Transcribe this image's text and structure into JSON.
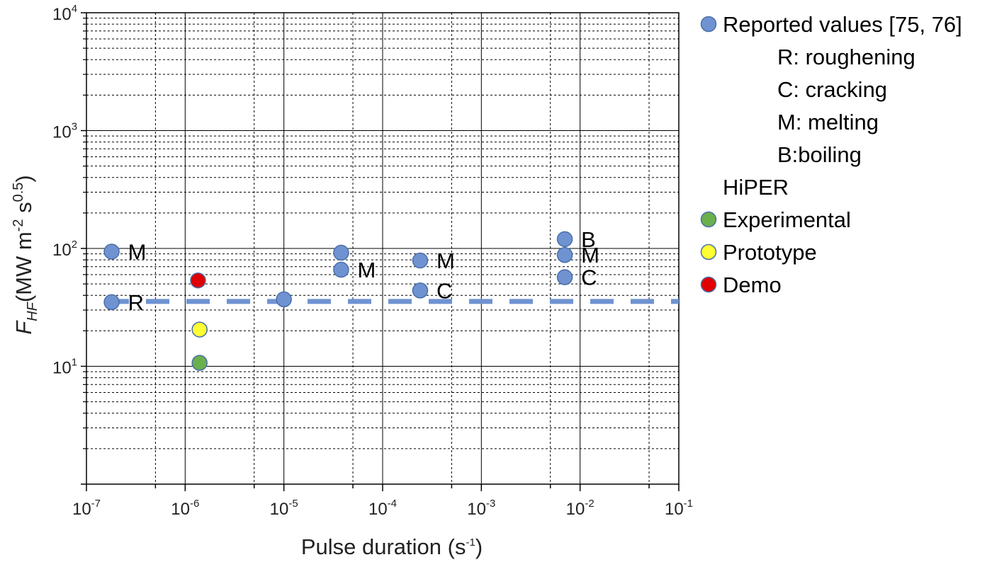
{
  "chart_data": {
    "type": "scatter",
    "x_scale": "log",
    "y_scale": "log",
    "xlim": [
      1e-07,
      0.1
    ],
    "ylim": [
      1,
      10000
    ],
    "grid": true,
    "legend_placement": "right",
    "xlabel": {
      "text": "Pulse duration (s",
      "sup": "-1",
      "close": ")"
    },
    "ylabel": {
      "main": "F",
      "sub": "HF",
      "text_a": "(MW m",
      "sup_a": "-2",
      "text_b": " s",
      "sup_b": "0.5",
      "text_c": ")"
    },
    "x_ticks": [
      {
        "base": "10",
        "exp": "-7"
      },
      {
        "base": "10",
        "exp": "-6"
      },
      {
        "base": "10",
        "exp": "-5"
      },
      {
        "base": "10",
        "exp": "-4"
      },
      {
        "base": "10",
        "exp": "-3"
      },
      {
        "base": "10",
        "exp": "-2"
      },
      {
        "base": "10",
        "exp": "-1"
      }
    ],
    "y_ticks": [
      {
        "base": "10",
        "exp": "1"
      },
      {
        "base": "10",
        "exp": "2"
      },
      {
        "base": "10",
        "exp": "3"
      },
      {
        "base": "10",
        "exp": "4"
      }
    ],
    "series": [
      {
        "name": "Reported values [75, 76]",
        "color": "#6f93d1",
        "points": [
          {
            "x": 1.8e-07,
            "y": 94,
            "label": "M"
          },
          {
            "x": 1.8e-07,
            "y": 35,
            "label": "R"
          },
          {
            "x": 1e-05,
            "y": 37,
            "label": ""
          },
          {
            "x": 3.8e-05,
            "y": 92,
            "label": ""
          },
          {
            "x": 3.8e-05,
            "y": 66,
            "label": "M"
          },
          {
            "x": 0.00024,
            "y": 79,
            "label": "M"
          },
          {
            "x": 0.00024,
            "y": 44,
            "label": "C"
          },
          {
            "x": 0.007,
            "y": 120,
            "label": "B"
          },
          {
            "x": 0.007,
            "y": 88,
            "label": "M"
          },
          {
            "x": 0.007,
            "y": 57,
            "label": "C"
          }
        ]
      },
      {
        "name": "Experimental",
        "color": "#6ab04c",
        "points": [
          {
            "x": 1.4e-06,
            "y": 10.7
          }
        ]
      },
      {
        "name": "Prototype",
        "color": "#ffff33",
        "points": [
          {
            "x": 1.4e-06,
            "y": 20.5
          }
        ]
      },
      {
        "name": "Demo",
        "color": "#e00000",
        "points": [
          {
            "x": 1.35e-06,
            "y": 53.5
          }
        ]
      }
    ],
    "reference_line": {
      "y": 35.5,
      "style": "dashed",
      "color": "#6f93d1"
    },
    "legend": {
      "entries": [
        {
          "text": "Reported values [75, 76]",
          "color": "#6f93d1",
          "marker": true,
          "indent": false
        },
        {
          "text": "R: roughening",
          "marker": false,
          "indent": true
        },
        {
          "text": "C: cracking",
          "marker": false,
          "indent": true
        },
        {
          "text": "M: melting",
          "marker": false,
          "indent": true
        },
        {
          "text": "B:boiling",
          "marker": false,
          "indent": true
        },
        {
          "text": "HiPER",
          "marker": false,
          "indent": false
        },
        {
          "text": "Experimental",
          "color": "#6ab04c",
          "marker": true,
          "indent": false
        },
        {
          "text": "Prototype",
          "color": "#ffff33",
          "marker": true,
          "indent": false
        },
        {
          "text": "Demo",
          "color": "#e00000",
          "marker": true,
          "indent": false
        }
      ]
    }
  }
}
